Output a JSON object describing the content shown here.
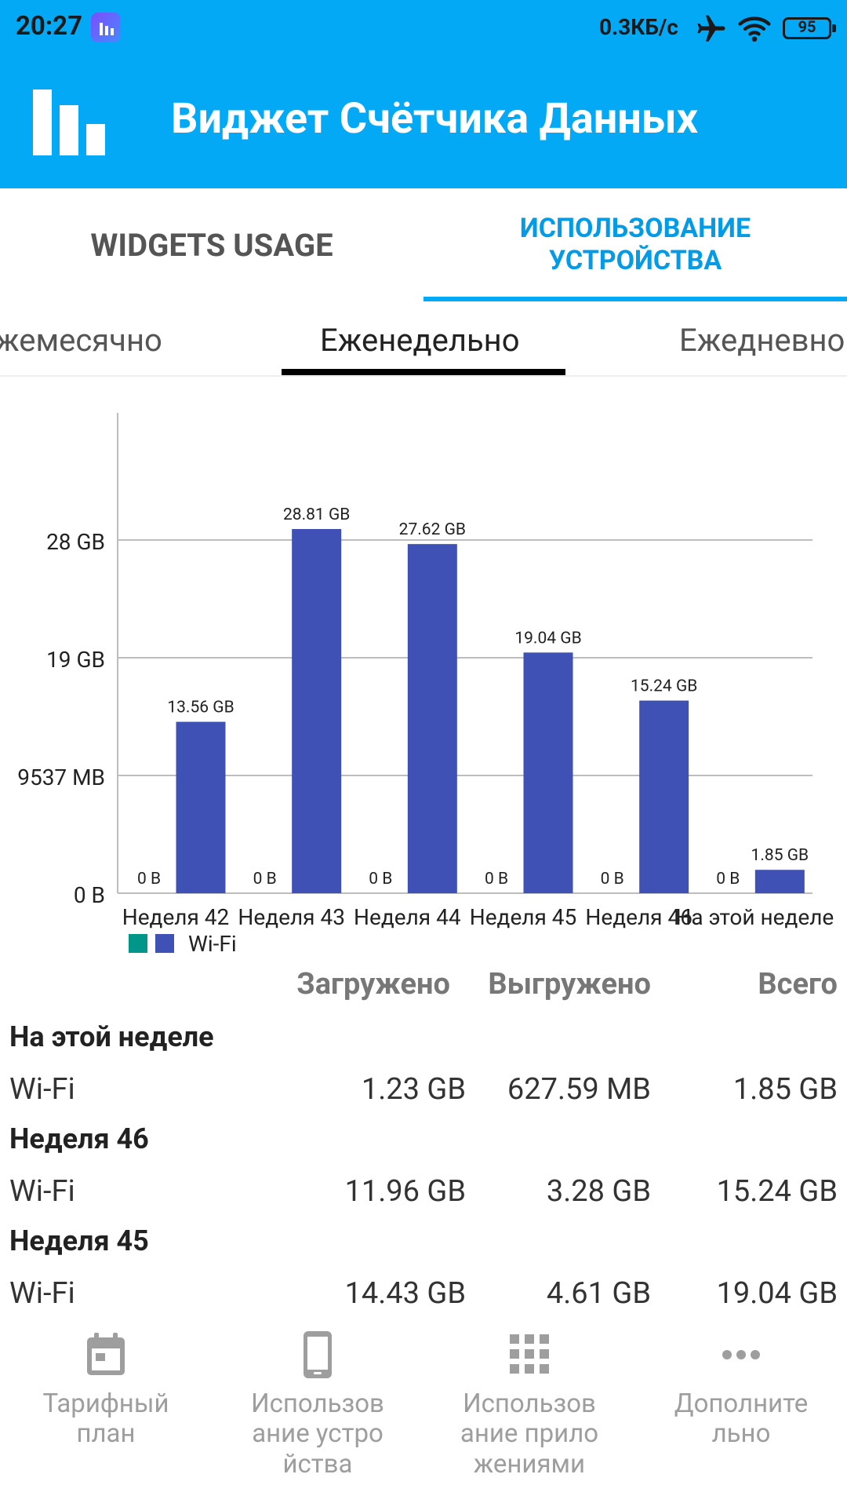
{
  "status_bar": {
    "time": "20:27",
    "speed": "0.3КБ/с",
    "battery": "95"
  },
  "app": {
    "title": "Виджет Счётчика Данных"
  },
  "main_tabs": [
    {
      "label": "WIDGETS USAGE"
    },
    {
      "label": "ИСПОЛЬЗОВАНИЕ УСТРОЙСТВА",
      "line1": "ИСПОЛЬЗОВАНИЕ",
      "line2": "УСТРОЙСТВА",
      "selected": true
    }
  ],
  "period_tabs": [
    {
      "label": "жемесячно"
    },
    {
      "label": "Еженедельно",
      "selected": true
    },
    {
      "label": "Ежедневно"
    }
  ],
  "chart_data": {
    "type": "bar",
    "categories": [
      "Неделя 42",
      "Неделя 43",
      "Неделя 44",
      "Неделя 45",
      "Неделя 46",
      "На этой неделе"
    ],
    "series": [
      {
        "name": "",
        "color": "#009688",
        "values_gb": [
          0,
          0,
          0,
          0,
          0,
          0
        ],
        "labels": [
          "0 B",
          "0 B",
          "0 B",
          "0 B",
          "0 B",
          "0 B"
        ]
      },
      {
        "name": "Wi-Fi",
        "color": "#3f51b5",
        "values_gb": [
          13.56,
          28.81,
          27.62,
          19.04,
          15.24,
          1.85
        ],
        "labels": [
          "13.56 GB",
          "28.81 GB",
          "27.62 GB",
          "19.04 GB",
          "15.24 GB",
          "1.85 GB"
        ]
      }
    ],
    "y_ticks": [
      "0 B",
      "9537 MB",
      "19 GB",
      "28 GB"
    ],
    "y_tick_values_gb": [
      0,
      9.31,
      18.63,
      27.94
    ],
    "ylim_gb": [
      0,
      38
    ],
    "grid": true,
    "legend": [
      "",
      "Wi-Fi"
    ],
    "legend_position": "bottom-left"
  },
  "usage_table": {
    "headers": {
      "downloaded": "Загружено",
      "uploaded": "Выгружено",
      "total": "Всего"
    },
    "sections": [
      {
        "title": "На этой неделе",
        "rows": [
          {
            "label": "Wi-Fi",
            "downloaded": "1.23 GB",
            "uploaded": "627.59 MB",
            "total": "1.85 GB"
          }
        ]
      },
      {
        "title": "Неделя 46",
        "rows": [
          {
            "label": "Wi-Fi",
            "downloaded": "11.96 GB",
            "uploaded": "3.28 GB",
            "total": "15.24 GB"
          }
        ]
      },
      {
        "title": "Неделя 45",
        "rows": [
          {
            "label": "Wi-Fi",
            "downloaded": "14.43 GB",
            "uploaded": "4.61 GB",
            "total": "19.04 GB"
          }
        ]
      }
    ]
  },
  "bottom_nav": [
    {
      "label": "Тарифный план",
      "icon": "calendar-icon"
    },
    {
      "label": "Использование устройства",
      "icon": "phone-icon"
    },
    {
      "label": "Использование приложениями",
      "icon": "apps-grid-icon"
    },
    {
      "label": "Дополнительно",
      "icon": "more-icon"
    }
  ]
}
